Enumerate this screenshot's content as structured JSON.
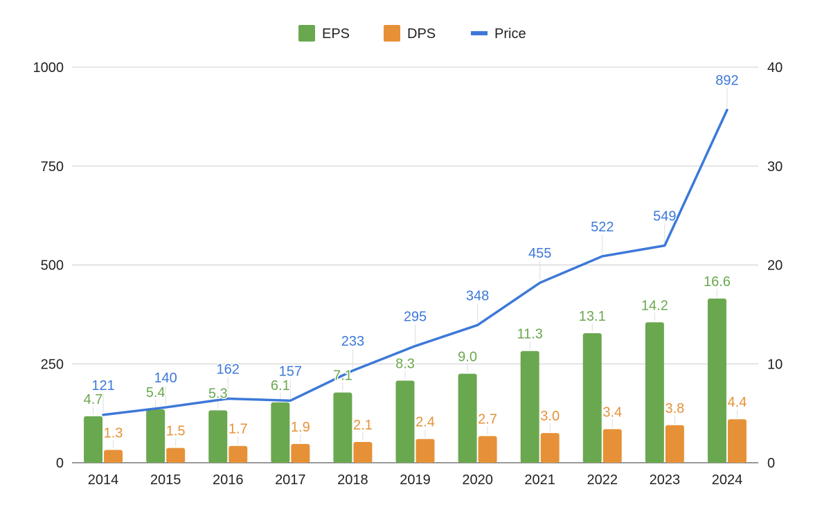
{
  "chart_data": {
    "type": "bar",
    "categories": [
      "2014",
      "2015",
      "2016",
      "2017",
      "2018",
      "2019",
      "2020",
      "2021",
      "2022",
      "2023",
      "2024"
    ],
    "series": [
      {
        "name": "EPS",
        "type": "bar",
        "axis": "right",
        "color": "#6aa84f",
        "values": [
          4.7,
          5.4,
          5.3,
          6.1,
          7.1,
          8.3,
          9.0,
          11.3,
          13.1,
          14.2,
          16.6
        ],
        "labels": [
          "4.7",
          "5.4",
          "5.3",
          "6.1",
          "7.1",
          "8.3",
          "9.0",
          "11.3",
          "13.1",
          "14.2",
          "16.6"
        ]
      },
      {
        "name": "DPS",
        "type": "bar",
        "axis": "right",
        "color": "#e69138",
        "values": [
          1.3,
          1.5,
          1.7,
          1.9,
          2.1,
          2.4,
          2.7,
          3.0,
          3.4,
          3.8,
          4.4
        ],
        "labels": [
          "1.3",
          "1.5",
          "1.7",
          "1.9",
          "2.1",
          "2.4",
          "2.7",
          "3.0",
          "3.4",
          "3.8",
          "4.4"
        ]
      },
      {
        "name": "Price",
        "type": "line",
        "axis": "left",
        "color": "#3c78d8",
        "values": [
          121,
          140,
          162,
          157,
          233,
          295,
          348,
          455,
          522,
          549,
          892
        ],
        "labels": [
          "121",
          "140",
          "162",
          "157",
          "233",
          "295",
          "348",
          "455",
          "522",
          "549",
          "892"
        ]
      }
    ],
    "y_left": {
      "min": 0,
      "max": 1000,
      "ticks": [
        "0",
        "250",
        "500",
        "750",
        "1000"
      ]
    },
    "y_right": {
      "min": 0,
      "max": 40,
      "ticks": [
        "0",
        "10",
        "20",
        "30",
        "40"
      ]
    },
    "grid": true,
    "legend_position": "top-center"
  }
}
